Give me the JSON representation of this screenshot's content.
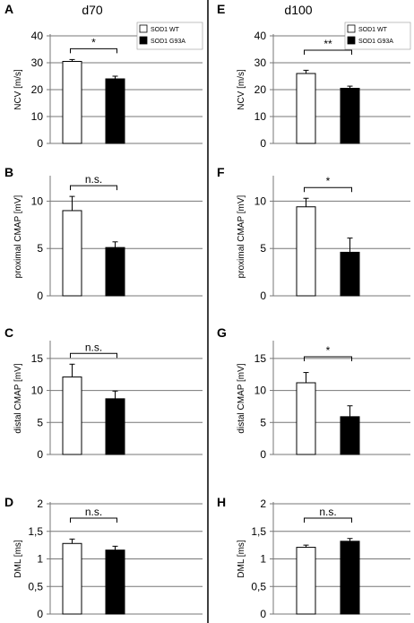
{
  "columns": [
    {
      "title": "d70"
    },
    {
      "title": "d100"
    }
  ],
  "legend": [
    {
      "label": "SOD1 WT",
      "color": "#ffffff"
    },
    {
      "label": "SOD1 G93A",
      "color": "#000000"
    }
  ],
  "colors": {
    "wt": "#ffffff",
    "mutant": "#000000",
    "grid": "#777777"
  },
  "chart_data": [
    {
      "panel": "A",
      "column": 0,
      "row": 0,
      "type": "bar",
      "categories": [
        "SOD1 WT",
        "SOD1 G93A"
      ],
      "values": [
        30.5,
        24.0
      ],
      "errors": [
        0.7,
        1.0
      ],
      "ylabel": "NCV [m/s]",
      "ylim": [
        0,
        40
      ],
      "yticks": [
        0,
        10,
        20,
        30,
        40
      ],
      "ytick_labels": [
        "0",
        "10",
        "20",
        "30",
        "40"
      ],
      "significance": "*",
      "grid": true
    },
    {
      "panel": "E",
      "column": 1,
      "row": 0,
      "type": "bar",
      "categories": [
        "SOD1 WT",
        "SOD1 G93A"
      ],
      "values": [
        26.0,
        20.5
      ],
      "errors": [
        1.2,
        0.8
      ],
      "ylabel": "NCV [m/s]",
      "ylim": [
        0,
        40
      ],
      "yticks": [
        0,
        10,
        20,
        30,
        40
      ],
      "ytick_labels": [
        "0",
        "10",
        "20",
        "30",
        "40"
      ],
      "significance": "**",
      "grid": true
    },
    {
      "panel": "B",
      "column": 0,
      "row": 1,
      "type": "bar",
      "categories": [
        "SOD1 WT",
        "SOD1 G93A"
      ],
      "values": [
        9.0,
        5.1
      ],
      "errors": [
        1.5,
        0.6
      ],
      "ylabel": "proximal CMAP [mV]",
      "ylim": [
        0,
        12.5
      ],
      "yticks": [
        0,
        5,
        10
      ],
      "ytick_labels": [
        "0",
        "5",
        "10"
      ],
      "significance": "n.s.",
      "grid": true
    },
    {
      "panel": "F",
      "column": 1,
      "row": 1,
      "type": "bar",
      "categories": [
        "SOD1 WT",
        "SOD1 G93A"
      ],
      "values": [
        9.4,
        4.6
      ],
      "errors": [
        0.9,
        1.5
      ],
      "ylabel": "proximal CMAP [mV]",
      "ylim": [
        0,
        12.5
      ],
      "yticks": [
        0,
        5,
        10
      ],
      "ytick_labels": [
        "0",
        "5",
        "10"
      ],
      "significance": "*",
      "grid": true
    },
    {
      "panel": "C",
      "column": 0,
      "row": 2,
      "type": "bar",
      "categories": [
        "SOD1 WT",
        "SOD1 G93A"
      ],
      "values": [
        12.1,
        8.7
      ],
      "errors": [
        2.0,
        1.2
      ],
      "ylabel": "distal CMAP [mV]",
      "ylim": [
        0,
        17.5
      ],
      "yticks": [
        0,
        5,
        10,
        15
      ],
      "ytick_labels": [
        "0",
        "5",
        "10",
        "15"
      ],
      "significance": "n.s.",
      "grid": true
    },
    {
      "panel": "G",
      "column": 1,
      "row": 2,
      "type": "bar",
      "categories": [
        "SOD1 WT",
        "SOD1 G93A"
      ],
      "values": [
        11.2,
        5.9
      ],
      "errors": [
        1.6,
        1.7
      ],
      "ylabel": "distal CMAP [mV]",
      "ylim": [
        0,
        17.5
      ],
      "yticks": [
        0,
        5,
        10,
        15
      ],
      "ytick_labels": [
        "0",
        "5",
        "10",
        "15"
      ],
      "significance": "*",
      "grid": true
    },
    {
      "panel": "D",
      "column": 0,
      "row": 3,
      "type": "bar",
      "categories": [
        "SOD1 WT",
        "SOD1 G93A"
      ],
      "values": [
        1.28,
        1.16
      ],
      "errors": [
        0.08,
        0.07
      ],
      "ylabel": "DML [ms]",
      "ylim": [
        0,
        2
      ],
      "yticks": [
        0,
        0.5,
        1,
        1.5,
        2
      ],
      "ytick_labels": [
        "0",
        "0,5",
        "1",
        "1,5",
        "2"
      ],
      "significance": "n.s.",
      "grid": true
    },
    {
      "panel": "H",
      "column": 1,
      "row": 3,
      "type": "bar",
      "categories": [
        "SOD1 WT",
        "SOD1 G93A"
      ],
      "values": [
        1.21,
        1.32
      ],
      "errors": [
        0.04,
        0.05
      ],
      "ylabel": "DML [ms]",
      "ylim": [
        0,
        2
      ],
      "yticks": [
        0,
        0.5,
        1,
        1.5,
        2
      ],
      "ytick_labels": [
        "0",
        "0,5",
        "1",
        "1,5",
        "2"
      ],
      "significance": "n.s.",
      "grid": true
    }
  ]
}
